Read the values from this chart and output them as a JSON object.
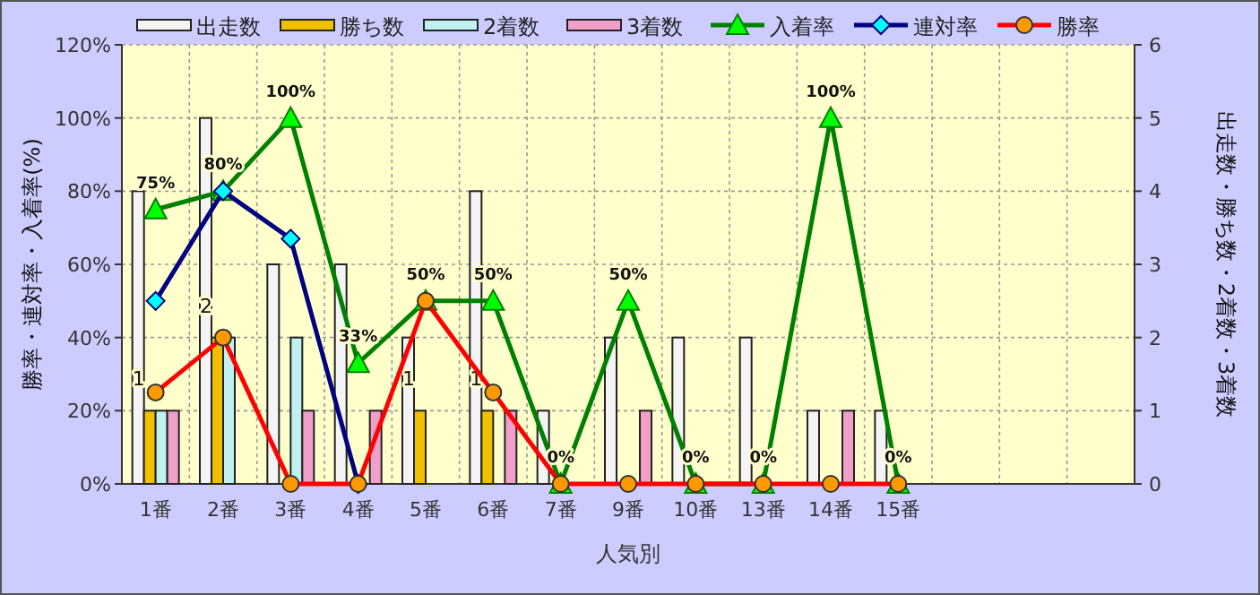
{
  "chart_data": {
    "type": "bar",
    "xlabel": "人気別",
    "ylabel": "勝率・連対率・入着率(%)",
    "y2label": "出走数・勝ち数・2着数・3着数",
    "categories": [
      "1番",
      "2番",
      "3番",
      "4番",
      "5番",
      "6番",
      "7番",
      "9番",
      "10番",
      "13番",
      "14番",
      "15番",
      null,
      null,
      null
    ],
    "series": [
      {
        "name": "出走数",
        "axis": "y2",
        "color": "#f4f4f4",
        "values": [
          4,
          5,
          3,
          3,
          2,
          4,
          1,
          2,
          2,
          2,
          1,
          1,
          null,
          null,
          null
        ]
      },
      {
        "name": "勝ち数",
        "axis": "y2",
        "color": "#f0c000",
        "values": [
          1,
          2,
          0,
          0,
          1,
          1,
          0,
          0,
          0,
          0,
          0,
          0,
          null,
          null,
          null
        ],
        "value_labels": [
          "1",
          "2",
          null,
          null,
          "1",
          "1",
          null,
          null,
          null,
          null,
          null,
          null,
          null,
          null,
          null
        ]
      },
      {
        "name": "2着数",
        "axis": "y2",
        "color": "#c0f0f0",
        "values": [
          1,
          2,
          2,
          0,
          0,
          0,
          0,
          0,
          0,
          0,
          0,
          0,
          null,
          null,
          null
        ]
      },
      {
        "name": "3着数",
        "axis": "y2",
        "color": "#f0a0c8",
        "values": [
          1,
          0,
          1,
          1,
          0,
          1,
          0,
          1,
          0,
          0,
          1,
          0,
          null,
          null,
          null
        ]
      },
      {
        "name": "入着率",
        "type": "line",
        "marker": "triangle",
        "color": "#008000",
        "values": [
          75,
          80,
          100,
          33,
          50,
          50,
          0,
          50,
          0,
          0,
          100,
          0,
          null,
          null,
          null
        ],
        "value_labels": [
          "75%",
          "80%",
          "100%",
          "33%",
          "50%",
          "50%",
          "0%",
          "50%",
          "0%",
          "0%",
          "100%",
          "0%",
          null,
          null,
          null
        ]
      },
      {
        "name": "連対率",
        "type": "line",
        "marker": "diamond",
        "color": "#000080",
        "values": [
          50,
          80,
          67,
          0,
          null,
          null,
          null,
          null,
          null,
          null,
          null,
          null,
          null,
          null,
          null
        ]
      },
      {
        "name": "勝率",
        "type": "line",
        "marker": "circle",
        "color": "#ff0000",
        "values": [
          25,
          40,
          0,
          0,
          50,
          25,
          0,
          0,
          0,
          0,
          0,
          0,
          null,
          null,
          null
        ]
      }
    ],
    "ylim": [
      0,
      120
    ],
    "yticks": [
      {
        "value": 0,
        "label": "0%"
      },
      {
        "value": 20,
        "label": "20%"
      },
      {
        "value": 40,
        "label": "40%"
      },
      {
        "value": 60,
        "label": "60%"
      },
      {
        "value": 80,
        "label": "80%"
      },
      {
        "value": 100,
        "label": "100%"
      },
      {
        "value": 120,
        "label": "120%"
      }
    ],
    "y2lim": [
      0,
      6
    ],
    "y2ticks": [
      0,
      1,
      2,
      3,
      4,
      5,
      6
    ],
    "grid": true,
    "legend": "top"
  }
}
